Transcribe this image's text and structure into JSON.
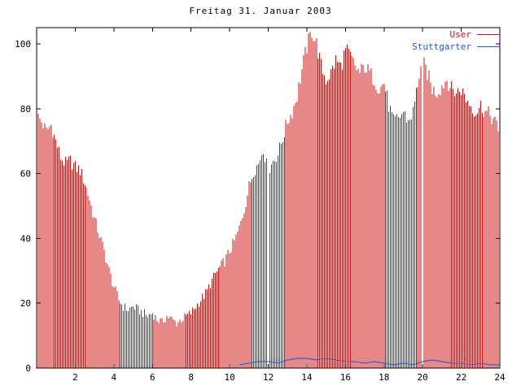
{
  "chart": {
    "title": "Freitag 31. Januar 2003"
  },
  "chart_data": {
    "type": "bar",
    "title": "Freitag 31. Januar 2003",
    "xlabel": "",
    "ylabel": "",
    "xlim": [
      0,
      24
    ],
    "ylim": [
      0,
      105
    ],
    "xticks": [
      2,
      4,
      6,
      8,
      10,
      12,
      14,
      16,
      18,
      20,
      22,
      24
    ],
    "yticks": [
      0,
      20,
      40,
      60,
      80,
      100
    ],
    "grid": false,
    "legend_position": "top-right-inside",
    "gaps_x": [
      12,
      20
    ],
    "series": [
      {
        "name": "User",
        "style": "impulses",
        "color": "#cc1111",
        "x_start": 0,
        "x_step": 0.25,
        "values": [
          78,
          76,
          73,
          75,
          70,
          65,
          63,
          64,
          62,
          61,
          57,
          52,
          46,
          41,
          36,
          30,
          25,
          21,
          19,
          18,
          19,
          18,
          17,
          16,
          17,
          15,
          14,
          16,
          15,
          14,
          15,
          16,
          17,
          19,
          21,
          23,
          26,
          29,
          31,
          33,
          36,
          39,
          43,
          49,
          56,
          61,
          63,
          68,
          60,
          64,
          66,
          71,
          76,
          79,
          84,
          92,
          99,
          104,
          100,
          93,
          89,
          91,
          95,
          93,
          98,
          96,
          93,
          91,
          93,
          91,
          89,
          86,
          88,
          81,
          76,
          77,
          79,
          76,
          79,
          88,
          95,
          91,
          86,
          85,
          87,
          89,
          86,
          85,
          86,
          83,
          81,
          79,
          81,
          79,
          78,
          76,
          71
        ]
      },
      {
        "name": "Stuttgarter",
        "style": "line",
        "color": "#2255cc",
        "x_start": 0,
        "x_step": 0.5,
        "values": [
          0,
          0,
          0,
          0,
          0,
          0,
          0,
          0,
          0,
          0,
          0,
          0,
          0,
          0,
          0,
          0,
          0,
          0,
          0,
          0,
          0,
          1,
          1.5,
          2,
          2,
          1.5,
          2.5,
          3,
          3,
          2.5,
          3,
          2.5,
          2,
          2,
          1.5,
          2,
          1.5,
          1,
          1.5,
          1,
          2,
          2.5,
          2,
          1.5,
          1.5,
          1,
          1.5,
          1,
          1
        ]
      }
    ]
  },
  "style": {
    "impulse_subdivide": 3,
    "jitter": 2.5,
    "axis_color": "#000000",
    "background": "#ffffff"
  }
}
